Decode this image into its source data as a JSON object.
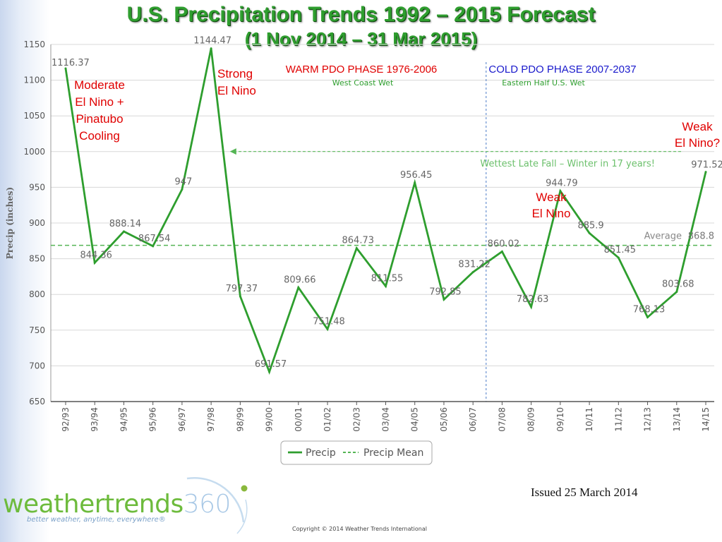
{
  "title": "U.S. Precipitation Trends 1992 – 2015 Forecast",
  "subtitle": "(1 Nov 2014 – 31 Mar 2015)",
  "issued": "Issued 25 March 2014",
  "copyright": "Copyright © 2014 Weather Trends International",
  "logo": {
    "word": "weathertrends",
    "number": "360",
    "tagline": "better weather, anytime, everywhere®"
  },
  "colors": {
    "line": "#2e9e2e",
    "mean": "#55b555",
    "annotation_red": "#e00000",
    "annotation_blue": "#1a1acc",
    "annotation_green": "#2e9e2e",
    "grid": "#d8d8d8"
  },
  "chart_data": {
    "type": "line",
    "ylabel": "Precip (inches)",
    "ylim": [
      650,
      1150
    ],
    "yticks": [
      650,
      700,
      750,
      800,
      850,
      900,
      950,
      1000,
      1050,
      1100,
      1150
    ],
    "categories": [
      "92/93",
      "93/94",
      "94/95",
      "95/96",
      "96/97",
      "97/98",
      "98/99",
      "99/00",
      "00/01",
      "01/02",
      "02/03",
      "03/04",
      "04/05",
      "05/06",
      "06/07",
      "07/08",
      "08/09",
      "09/10",
      "10/11",
      "11/12",
      "12/13",
      "13/14",
      "14/15"
    ],
    "series": [
      {
        "name": "Precip",
        "values": [
          1116.37,
          844.36,
          888.14,
          867.54,
          947,
          1144.47,
          797.37,
          691.57,
          809.66,
          751.48,
          864.73,
          811.55,
          956.45,
          792.85,
          831.22,
          860.02,
          782.63,
          944.79,
          885.9,
          851.45,
          768.13,
          803.68,
          971.52
        ]
      },
      {
        "name": "Precip Mean",
        "values": [
          868.8,
          868.8,
          868.8,
          868.8,
          868.8,
          868.8,
          868.8,
          868.8,
          868.8,
          868.8,
          868.8,
          868.8,
          868.8,
          868.8,
          868.8,
          868.8,
          868.8,
          868.8,
          868.8,
          868.8,
          868.8,
          868.8,
          868.8
        ]
      }
    ],
    "data_labels": [
      "1116.37",
      "844.36",
      "888.14",
      "867.54",
      "947",
      "1144.47",
      "797.37",
      "691.57",
      "809.66",
      "751.48",
      "864.73",
      "811.55",
      "956.45",
      "792.85",
      "831.22",
      "860.02",
      "782.63",
      "944.79",
      "885.9",
      "851.45",
      "768.13",
      "803.68",
      "971.52"
    ],
    "mean_value_label": "868.8",
    "mean_text": "Average",
    "legend": {
      "placement": "bottom",
      "items": [
        "Precip",
        "Precip Mean"
      ]
    },
    "phase_divider_after": "06/07",
    "annotations": {
      "moderate": [
        "Moderate",
        "El Nino +",
        "Pinatubo",
        "Cooling"
      ],
      "strong": [
        "Strong",
        "El Nino"
      ],
      "weak_1": [
        "Weak",
        "El Nino"
      ],
      "weak_2": [
        "Weak",
        "El Nino?"
      ],
      "warm_phase": "WARM PDO PHASE 1976-2006",
      "warm_sub": "West Coast Wet",
      "cold_phase": "COLD PDO PHASE 2007-2037",
      "cold_sub": "Eastern Half U.S. Wet",
      "wettest": "Wettest Late Fall – Winter in 17 years!"
    }
  }
}
